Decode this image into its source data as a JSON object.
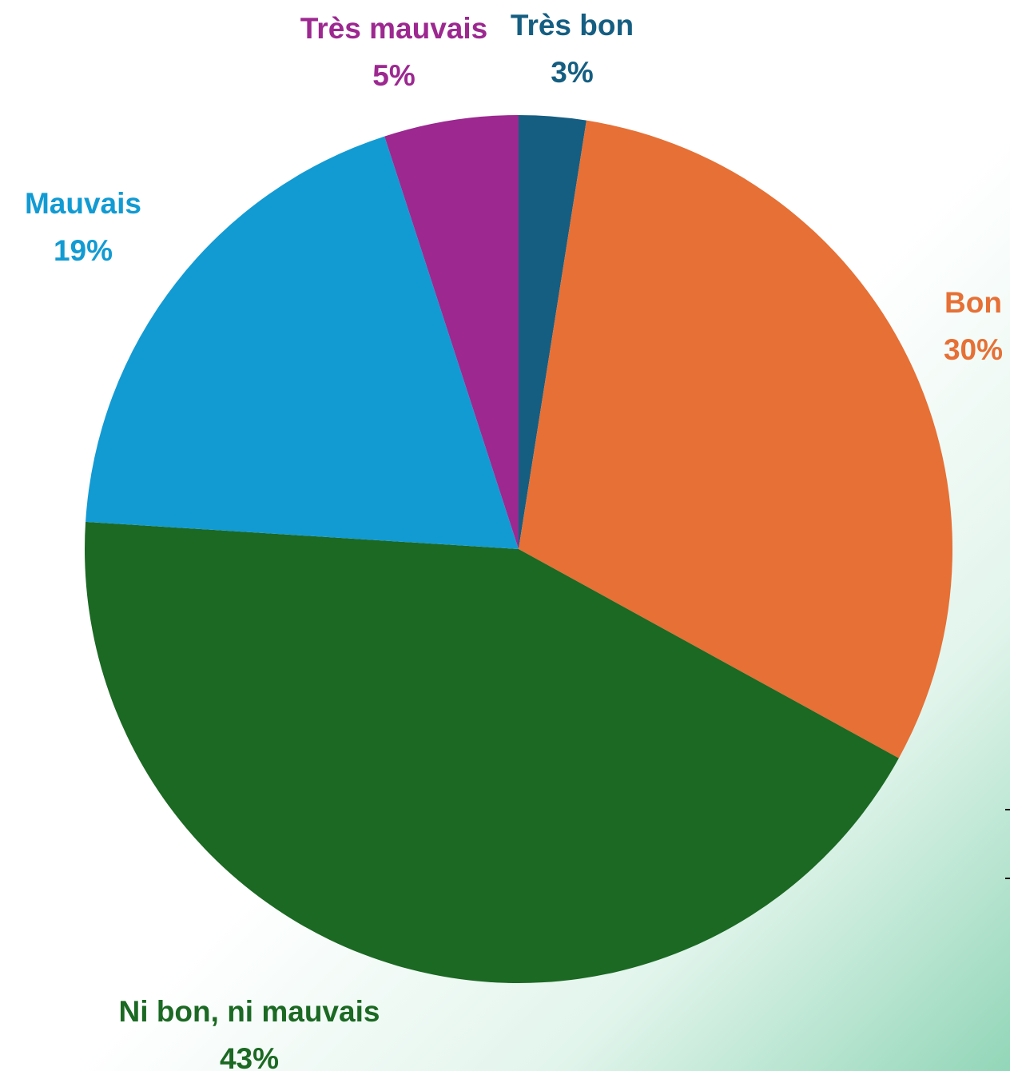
{
  "chart_data": {
    "type": "pie",
    "start_angle_deg": 0,
    "direction": "clockwise",
    "slices": [
      {
        "label": "Très bon",
        "value_text": "3%",
        "value": 2.5,
        "color": "#155E82"
      },
      {
        "label": "Bon",
        "value_text": "30%",
        "value": 30.5,
        "color": "#E67035"
      },
      {
        "label": "Ni bon, ni mauvais",
        "value_text": "43%",
        "value": 43.0,
        "color": "#1B6923"
      },
      {
        "label": "Mauvais",
        "value_text": "19%",
        "value": 19.0,
        "color": "#129BD3"
      },
      {
        "label": "Très mauvais",
        "value_text": "5%",
        "value": 5.0,
        "color": "#9C2890"
      }
    ]
  }
}
